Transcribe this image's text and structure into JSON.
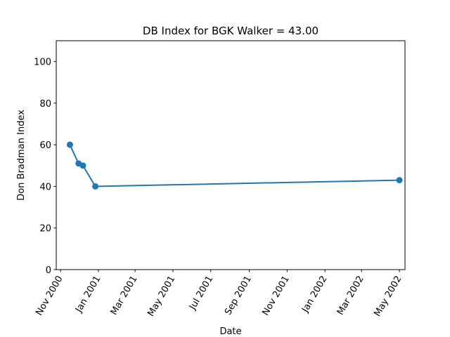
{
  "chart_data": {
    "type": "line",
    "title": "DB Index for BGK Walker = 43.00",
    "xlabel": "Date",
    "ylabel": "Don Bradman Index",
    "xlim": [
      "2000-10-25",
      "2002-05-10"
    ],
    "ylim": [
      0,
      110
    ],
    "x_ticks": [
      {
        "date": "2000-11-01",
        "label": "Nov 2000"
      },
      {
        "date": "2001-01-01",
        "label": "Jan 2001"
      },
      {
        "date": "2001-03-01",
        "label": "Mar 2001"
      },
      {
        "date": "2001-05-01",
        "label": "May 2001"
      },
      {
        "date": "2001-07-01",
        "label": "Jul 2001"
      },
      {
        "date": "2001-09-01",
        "label": "Sep 2001"
      },
      {
        "date": "2001-11-01",
        "label": "Nov 2001"
      },
      {
        "date": "2002-01-01",
        "label": "Jan 2002"
      },
      {
        "date": "2002-03-01",
        "label": "Mar 2002"
      },
      {
        "date": "2002-05-01",
        "label": "May 2002"
      }
    ],
    "y_ticks": [
      0,
      20,
      40,
      60,
      80,
      100
    ],
    "grid": false,
    "series": [
      {
        "color": "#1f77b4",
        "points": [
          {
            "x": "2000-11-16",
            "y": 60.0
          },
          {
            "x": "2000-11-30",
            "y": 51.0
          },
          {
            "x": "2000-12-07",
            "y": 50.0
          },
          {
            "x": "2000-12-27",
            "y": 40.0
          },
          {
            "x": "2002-05-01",
            "y": 43.0
          }
        ]
      }
    ]
  }
}
